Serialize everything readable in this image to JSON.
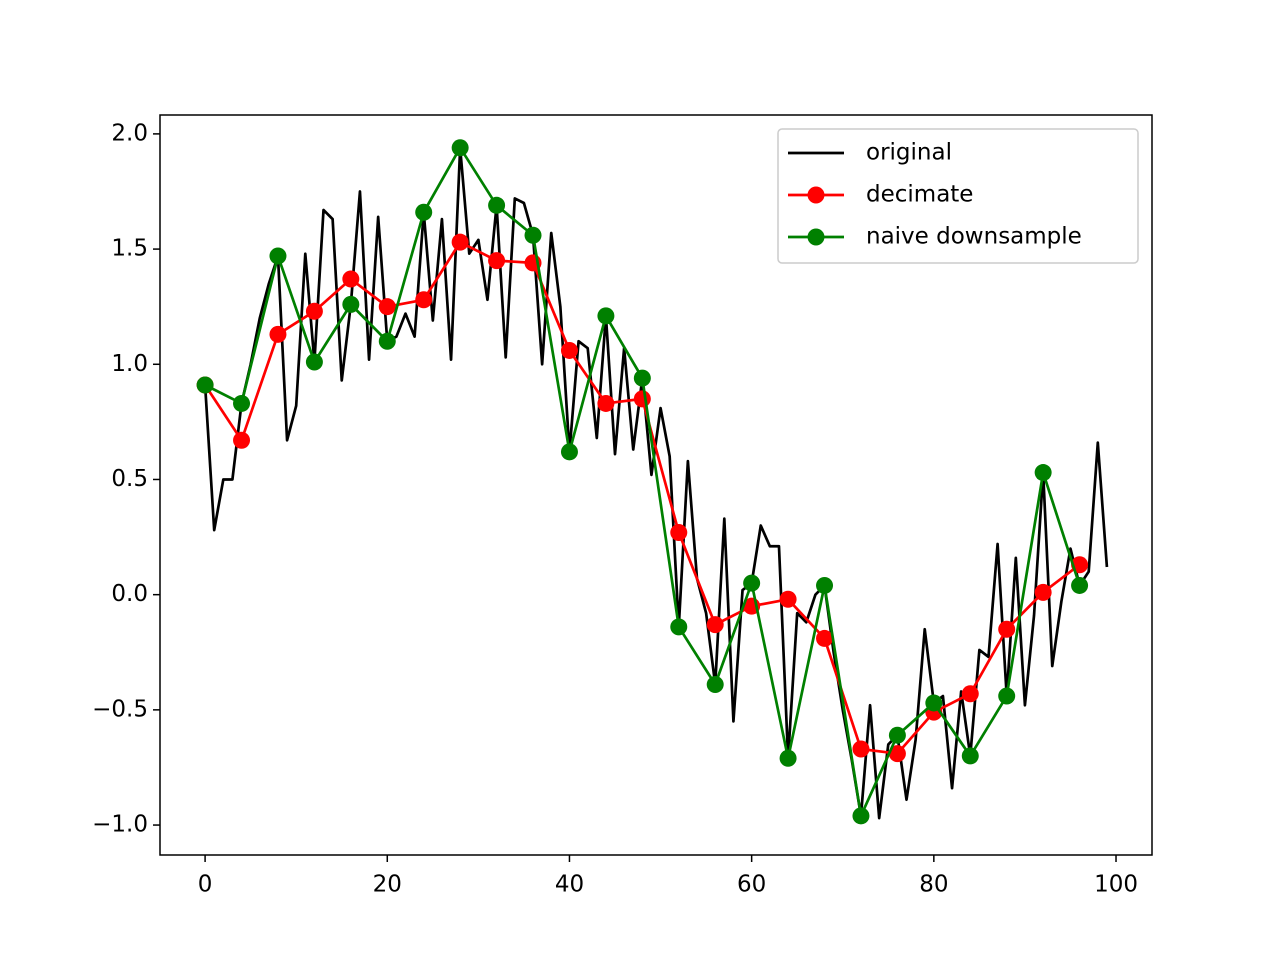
{
  "chart_data": {
    "type": "line",
    "xlim": [
      -4.95,
      103.95
    ],
    "ylim": [
      -1.13,
      2.082
    ],
    "xticks": [
      0,
      20,
      40,
      60,
      80,
      100
    ],
    "yticks": [
      {
        "value": -1.0,
        "label": "−1.0"
      },
      {
        "value": -0.5,
        "label": "−0.5"
      },
      {
        "value": 0.0,
        "label": "0.0"
      },
      {
        "value": 0.5,
        "label": "0.5"
      },
      {
        "value": 1.0,
        "label": "1.0"
      },
      {
        "value": 1.5,
        "label": "1.5"
      },
      {
        "value": 2.0,
        "label": "2.0"
      }
    ],
    "legend": "upper right",
    "series": [
      {
        "name": "original",
        "color": "#000000",
        "marker": false,
        "x": [
          0,
          1,
          2,
          3,
          4,
          5,
          6,
          7,
          8,
          9,
          10,
          11,
          12,
          13,
          14,
          15,
          16,
          17,
          18,
          19,
          20,
          21,
          22,
          23,
          24,
          25,
          26,
          27,
          28,
          29,
          30,
          31,
          32,
          33,
          34,
          35,
          36,
          37,
          38,
          39,
          40,
          41,
          42,
          43,
          44,
          45,
          46,
          47,
          48,
          49,
          50,
          51,
          52,
          53,
          54,
          55,
          56,
          57,
          58,
          59,
          60,
          61,
          62,
          63,
          64,
          65,
          66,
          67,
          68,
          69,
          70,
          71,
          72,
          73,
          74,
          75,
          76,
          77,
          78,
          79,
          80,
          81,
          82,
          83,
          84,
          85,
          86,
          87,
          88,
          89,
          90,
          91,
          92,
          93,
          94,
          95,
          96,
          97,
          98,
          99
        ],
        "values": [
          0.91,
          0.28,
          0.5,
          0.5,
          0.83,
          1.0,
          1.2,
          1.35,
          1.47,
          0.67,
          0.82,
          1.48,
          1.01,
          1.67,
          1.63,
          0.93,
          1.26,
          1.75,
          1.02,
          1.64,
          1.1,
          1.12,
          1.22,
          1.12,
          1.66,
          1.19,
          1.63,
          1.02,
          1.94,
          1.48,
          1.54,
          1.28,
          1.69,
          1.03,
          1.72,
          1.7,
          1.56,
          1.0,
          1.57,
          1.25,
          0.62,
          1.1,
          1.07,
          0.68,
          1.21,
          0.61,
          1.07,
          0.63,
          0.94,
          0.52,
          0.81,
          0.6,
          -0.14,
          0.58,
          0.07,
          -0.08,
          -0.39,
          0.33,
          -0.55,
          0.02,
          0.05,
          0.3,
          0.21,
          0.21,
          -0.71,
          -0.08,
          -0.12,
          0.0,
          0.04,
          -0.25,
          -0.5,
          -0.72,
          -0.96,
          -0.48,
          -0.97,
          -0.65,
          -0.61,
          -0.89,
          -0.63,
          -0.15,
          -0.47,
          -0.44,
          -0.84,
          -0.42,
          -0.7,
          -0.24,
          -0.27,
          0.22,
          -0.44,
          0.16,
          -0.48,
          -0.09,
          0.53,
          -0.31,
          -0.03,
          0.2,
          0.04,
          0.1,
          0.66,
          0.12
        ]
      },
      {
        "name": "decimate",
        "color": "#ff0000",
        "marker": true,
        "x": [
          0,
          4,
          8,
          12,
          16,
          20,
          24,
          28,
          32,
          36,
          40,
          44,
          48,
          52,
          56,
          60,
          64,
          68,
          72,
          76,
          80,
          84,
          88,
          92,
          96
        ],
        "values": [
          0.91,
          0.67,
          1.13,
          1.23,
          1.37,
          1.25,
          1.28,
          1.53,
          1.45,
          1.44,
          1.06,
          0.83,
          0.85,
          0.27,
          -0.13,
          -0.05,
          -0.02,
          -0.19,
          -0.67,
          -0.69,
          -0.51,
          -0.43,
          -0.15,
          0.01,
          0.13
        ]
      },
      {
        "name": "naive downsample",
        "color": "#008000",
        "marker": true,
        "x": [
          0,
          4,
          8,
          12,
          16,
          20,
          24,
          28,
          32,
          36,
          40,
          44,
          48,
          52,
          56,
          60,
          64,
          68,
          72,
          76,
          80,
          84,
          88,
          92,
          96
        ],
        "values": [
          0.91,
          0.83,
          1.47,
          1.01,
          1.26,
          1.1,
          1.66,
          1.94,
          1.69,
          1.56,
          0.62,
          1.21,
          0.94,
          -0.14,
          -0.39,
          0.05,
          -0.71,
          0.04,
          -0.96,
          -0.61,
          -0.47,
          -0.7,
          -0.44,
          0.53,
          0.04
        ]
      }
    ]
  }
}
